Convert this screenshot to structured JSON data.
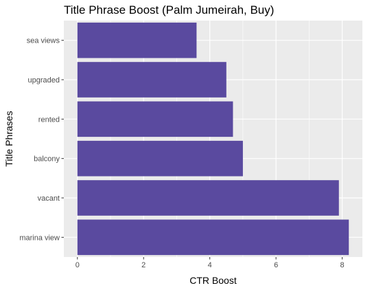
{
  "chart_data": {
    "type": "bar",
    "orientation": "horizontal",
    "title": "Title Phrase Boost (Palm Jumeirah, Buy)",
    "xlabel": "CTR Boost",
    "ylabel": "Title Phrases",
    "categories": [
      "sea views",
      "upgraded",
      "rented",
      "balcony",
      "vacant",
      "marina view"
    ],
    "values": [
      3.6,
      4.5,
      4.7,
      5.0,
      7.9,
      8.2
    ],
    "xlim": [
      0,
      8.2
    ],
    "xticks": [
      "0",
      "2",
      "4",
      "6",
      "8"
    ],
    "grid": true,
    "colors": {
      "bar": "#5a4a9f",
      "panel": "#ebebeb",
      "grid": "#ffffff"
    }
  }
}
